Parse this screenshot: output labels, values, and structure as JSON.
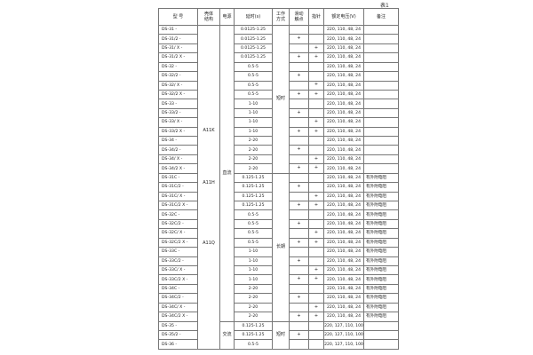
{
  "page_note": "表1",
  "table": {
    "headers": [
      {
        "id": "model",
        "label": "型  号"
      },
      {
        "id": "case",
        "label": "壳体\n结构"
      },
      {
        "id": "power",
        "label": "电源"
      },
      {
        "id": "delay",
        "label": "延时(s)"
      },
      {
        "id": "work-mode",
        "label": "工作\n方式"
      },
      {
        "id": "slide-contact",
        "label": "滑动\n触点"
      },
      {
        "id": "pointer",
        "label": "指针"
      },
      {
        "id": "voltage",
        "label": "额定电压(V)"
      },
      {
        "id": "remark",
        "label": "备注"
      }
    ],
    "case_structure_labels": [
      "A11K",
      "A11H",
      "A11Q"
    ],
    "power_groups": [
      {
        "label": "直流",
        "rows": 32
      },
      {
        "label": "交流",
        "rows": 3
      }
    ],
    "work_mode_groups": [
      {
        "label": "短时",
        "rows": 16
      },
      {
        "label": "长期",
        "rows": 16
      },
      {
        "label": "短时",
        "rows": 3
      }
    ],
    "rows": [
      {
        "m": "DS-31 -",
        "d": "0.0125-1.25",
        "s": "",
        "p": "",
        "v": "220, 110, 48, 24",
        "r": ""
      },
      {
        "m": "DS-31/2 -",
        "d": "0.0125-1.25",
        "s": "+",
        "p": "",
        "v": "220, 110, 48, 24",
        "r": ""
      },
      {
        "m": "DS-31/ X -",
        "d": "0.0125-1.25",
        "s": "",
        "p": "+",
        "v": "220, 110, 48, 24",
        "r": ""
      },
      {
        "m": "DS-31/2 X -",
        "d": "0.0125-1.25",
        "s": "+",
        "p": "+",
        "v": "220, 110, 48, 24",
        "r": ""
      },
      {
        "m": "DS-32 -",
        "d": "0.5-5",
        "s": "",
        "p": "",
        "v": "220, 110, 48, 24",
        "r": ""
      },
      {
        "m": "DS-32/2 -",
        "d": "0.5-5",
        "s": "+",
        "p": "",
        "v": "220, 110, 48, 24",
        "r": ""
      },
      {
        "m": "DS-32/ X -",
        "d": "0.5-5",
        "s": "",
        "p": "+",
        "v": "220, 110, 48, 24",
        "r": ""
      },
      {
        "m": "DS-32/2 X -",
        "d": "0.5-5",
        "s": "+",
        "p": "+",
        "v": "220, 110, 48, 24",
        "r": ""
      },
      {
        "m": "DS-33 -",
        "d": "1-10",
        "s": "",
        "p": "",
        "v": "220, 110, 48, 24",
        "r": ""
      },
      {
        "m": "DS-33/2 -",
        "d": "1-10",
        "s": "+",
        "p": "",
        "v": "220, 110, 48, 24",
        "r": ""
      },
      {
        "m": "DS-33/ X -",
        "d": "1-10",
        "s": "",
        "p": "+",
        "v": "220, 110, 48, 24",
        "r": ""
      },
      {
        "m": "DS-33/2 X -",
        "d": "1-10",
        "s": "+",
        "p": "+",
        "v": "220, 110, 48, 24",
        "r": ""
      },
      {
        "m": "DS-34 -",
        "d": "2-20",
        "s": "",
        "p": "",
        "v": "220, 110, 48, 24",
        "r": ""
      },
      {
        "m": "DS-34/2 -",
        "d": "2-20",
        "s": "+",
        "p": "",
        "v": "220, 110, 48, 24",
        "r": ""
      },
      {
        "m": "DS-34/ X -",
        "d": "2-20",
        "s": "",
        "p": "+",
        "v": "220, 110, 48, 24",
        "r": ""
      },
      {
        "m": "DS-34/2 X -",
        "d": "2-20",
        "s": "+",
        "p": "+",
        "v": "220, 110, 48, 24",
        "r": ""
      },
      {
        "m": "DS-31C -",
        "d": "0.125-1.25",
        "s": "",
        "p": "",
        "v": "220, 110, 48, 24",
        "r": "有外附电阻"
      },
      {
        "m": "DS-31C/2 -",
        "d": "0.125-1.25",
        "s": "+",
        "p": "",
        "v": "220, 110, 48, 24",
        "r": "有外附电阻"
      },
      {
        "m": "DS-31C/ X -",
        "d": "0.125-1.25",
        "s": "",
        "p": "+",
        "v": "220, 110, 48, 24",
        "r": "有外附电阻"
      },
      {
        "m": "DS-31C/2 X -",
        "d": "0.125-1.25",
        "s": "+",
        "p": "+",
        "v": "220, 110, 48, 24",
        "r": "有外附电阻"
      },
      {
        "m": "DS-32C -",
        "d": "0.5-5",
        "s": "",
        "p": "",
        "v": "220, 110, 48, 24",
        "r": "有外附电阻"
      },
      {
        "m": "DS-32C/2 -",
        "d": "0.5-5",
        "s": "+",
        "p": "",
        "v": "220, 110, 48, 24",
        "r": "有外附电阻"
      },
      {
        "m": "DS-32C/ X -",
        "d": "0.5-5",
        "s": "",
        "p": "+",
        "v": "220, 110, 48, 24",
        "r": "有外附电阻"
      },
      {
        "m": "DS-32C/2 X -",
        "d": "0.5-5",
        "s": "+",
        "p": "+",
        "v": "220, 110, 48, 24",
        "r": "有外附电阻"
      },
      {
        "m": "DS-33C -",
        "d": "1-10",
        "s": "",
        "p": "",
        "v": "220, 110, 48, 24",
        "r": "有外附电阻"
      },
      {
        "m": "DS-33C/2 -",
        "d": "1-10",
        "s": "+",
        "p": "",
        "v": "220, 110, 48, 24",
        "r": "有外附电阻"
      },
      {
        "m": "DS-33C/ X -",
        "d": "1-10",
        "s": "",
        "p": "+",
        "v": "220, 110, 48, 24",
        "r": "有外附电阻"
      },
      {
        "m": "DS-33C/2 X -",
        "d": "1-10",
        "s": "+",
        "p": "+",
        "v": "220, 110, 48, 24",
        "r": "有外附电阻"
      },
      {
        "m": "DS-34C -",
        "d": "2-20",
        "s": "",
        "p": "",
        "v": "220, 110, 48, 24",
        "r": "有外附电阻"
      },
      {
        "m": "DS-34C/2 -",
        "d": "2-20",
        "s": "+",
        "p": "",
        "v": "220, 110, 48, 24",
        "r": "有外附电阻"
      },
      {
        "m": "DS-34C/ X -",
        "d": "2-20",
        "s": "",
        "p": "+",
        "v": "220, 110, 48, 24",
        "r": "有外附电阻"
      },
      {
        "m": "DS-34C/2 X -",
        "d": "2-20",
        "s": "+",
        "p": "+",
        "v": "220, 110, 48, 24",
        "r": "有外附电阻"
      },
      {
        "m": "DS-35 -",
        "d": "0.125-1.25",
        "s": "",
        "p": "",
        "v": "220, 127, 110, 100",
        "r": ""
      },
      {
        "m": "DS-35/2 -",
        "d": "0.125-1.25",
        "s": "+",
        "p": "",
        "v": "220, 127, 110, 100",
        "r": ""
      },
      {
        "m": "DS-36 -",
        "d": "0.5-5",
        "s": "",
        "p": "",
        "v": "220, 127, 110, 100",
        "r": ""
      }
    ]
  }
}
